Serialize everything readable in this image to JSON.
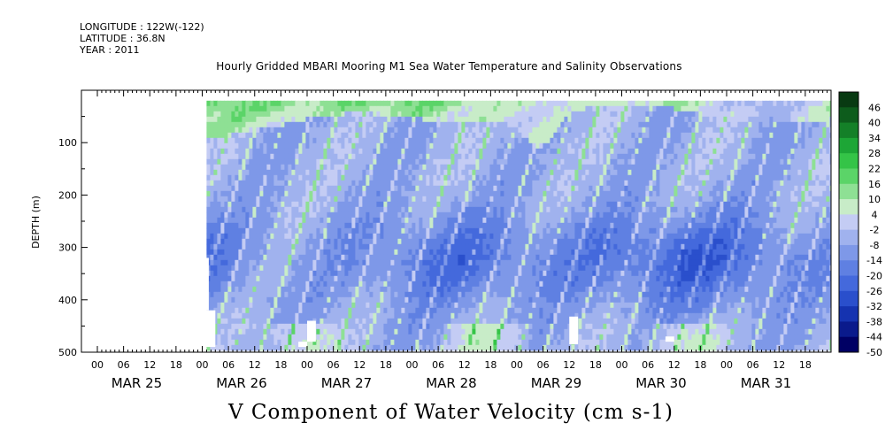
{
  "header": {
    "longitude": "LONGITUDE : 122W(-122)",
    "latitude": "LATITUDE : 36.8N",
    "year": "YEAR : 2011"
  },
  "title": "Hourly Gridded MBARI Mooring M1 Sea Water Temperature and Salinity Observations",
  "variable_title": "V Component of Water Velocity (cm s-1)",
  "chart_data": {
    "type": "heatmap",
    "title": "Hourly Gridded MBARI Mooring M1 Sea Water Temperature and Salinity Observations",
    "subtitle": "V Component of Water Velocity (cm s-1)",
    "xlabel": "",
    "ylabel": "DEPTH (m)",
    "x_range": [
      "2011-03-24T00:00",
      "2011-04-01T00:00"
    ],
    "data_x_range": [
      "2011-03-25T01:00",
      "2011-03-31T22:00"
    ],
    "hour_tick_labels": [
      "00",
      "06",
      "12",
      "18",
      "00",
      "06",
      "12",
      "18",
      "00",
      "06",
      "12",
      "18",
      "00",
      "06",
      "12",
      "18",
      "00",
      "06",
      "12",
      "18",
      "00",
      "06",
      "12",
      "18",
      "00",
      "06",
      "12",
      "18"
    ],
    "day_labels": [
      "MAR 25",
      "MAR 26",
      "MAR 27",
      "MAR 28",
      "MAR 29",
      "MAR 30",
      "MAR 31"
    ],
    "y_range": [
      500,
      0
    ],
    "y_reversed": true,
    "data_y_range": [
      20,
      490
    ],
    "y_ticks": [
      100,
      200,
      300,
      400,
      500
    ],
    "colorbar": {
      "unit": "cm s-1",
      "levels": [
        -50,
        -44,
        -38,
        -32,
        -26,
        -20,
        -14,
        -8,
        -2,
        4,
        10,
        16,
        22,
        28,
        34,
        40,
        46
      ],
      "tick_labels": [
        "46",
        "40",
        "34",
        "28",
        "22",
        "16",
        "10",
        "4",
        "-2",
        "-8",
        "-14",
        "-20",
        "-26",
        "-32",
        "-38",
        "-44",
        "-50"
      ],
      "colors": [
        "#000064",
        "#0a1a8c",
        "#1533b0",
        "#2a4fcc",
        "#4469dc",
        "#5f80e2",
        "#7e98e8",
        "#a0b2ee",
        "#c4ccf4",
        "#c8ecc8",
        "#8ee094",
        "#5bd468",
        "#34c447",
        "#1da636",
        "#148028",
        "#0d5c1c",
        "#083a12"
      ]
    },
    "pattern": "Positive (northward, green) flow 8-30 cm/s in the upper ~20-100 m across most of the record, strongest around Mar 25-27; mostly negative (southward, blue) flow -5 to -25 cm/s at depth, strongest near 250-400 m around Mar 29-30; small positive patches near the bottom (450-490 m)."
  }
}
